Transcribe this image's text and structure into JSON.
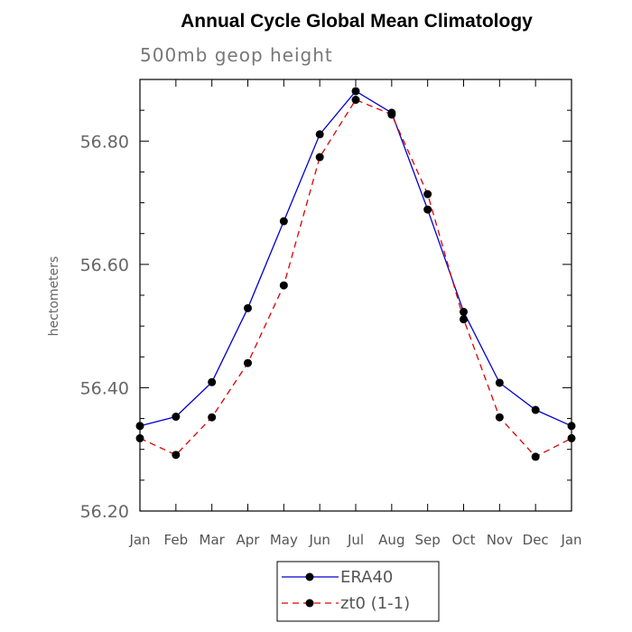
{
  "chart_data": {
    "type": "line",
    "title": "Annual Cycle Global Mean Climatology",
    "subtitle": "500mb geop height",
    "xlabel": "",
    "ylabel": "hectometers",
    "categories": [
      "Jan",
      "Feb",
      "Mar",
      "Apr",
      "May",
      "Jun",
      "Jul",
      "Aug",
      "Sep",
      "Oct",
      "Nov",
      "Dec",
      "Jan"
    ],
    "ylim": [
      56.2,
      56.9
    ],
    "yticks": [
      "56.20",
      "56.40",
      "56.60",
      "56.80"
    ],
    "grid": false,
    "legend_position": "bottom-center",
    "series": [
      {
        "name": "ERA40",
        "color": "#0000cc",
        "style": "solid",
        "values": [
          56.338,
          56.353,
          56.409,
          56.529,
          56.67,
          56.811,
          56.881,
          56.846,
          56.689,
          56.523,
          56.408,
          56.364,
          56.338
        ]
      },
      {
        "name": "zt0 (1-1)",
        "color": "#dd0000",
        "style": "dashed",
        "values": [
          56.318,
          56.291,
          56.352,
          56.44,
          56.566,
          56.774,
          56.867,
          56.843,
          56.714,
          56.511,
          56.352,
          56.288,
          56.318
        ]
      }
    ]
  }
}
